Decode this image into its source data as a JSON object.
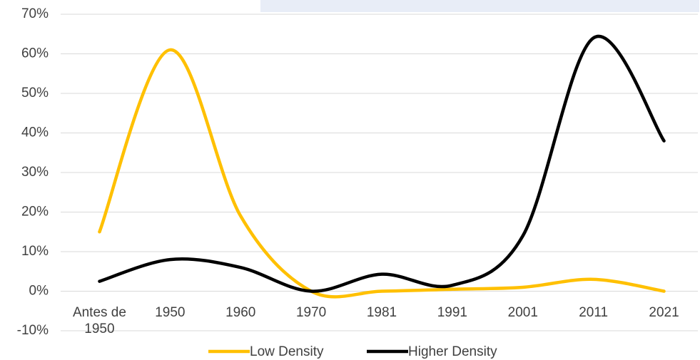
{
  "chart_data": {
    "type": "line",
    "categories": [
      "Antes de 1950",
      "1950",
      "1960",
      "1970",
      "1981",
      "1991",
      "2001",
      "2011",
      "2021"
    ],
    "series": [
      {
        "name": "Low Density",
        "color": "#FFC000",
        "values": [
          15,
          61,
          19,
          0,
          0,
          0.5,
          1,
          3,
          0
        ]
      },
      {
        "name": "Higher Density",
        "color": "#000000",
        "values": [
          2.5,
          8,
          6,
          0,
          4.3,
          1.5,
          14,
          64,
          38
        ]
      }
    ],
    "ylim": [
      -10,
      70
    ],
    "yticks": [
      {
        "value": -10,
        "label": "-10%"
      },
      {
        "value": 0,
        "label": "0%"
      },
      {
        "value": 10,
        "label": "10%"
      },
      {
        "value": 20,
        "label": "20%"
      },
      {
        "value": 30,
        "label": "30%"
      },
      {
        "value": 40,
        "label": "40%"
      },
      {
        "value": 50,
        "label": "50%"
      },
      {
        "value": 60,
        "label": "60%"
      },
      {
        "value": 70,
        "label": "70%"
      }
    ],
    "grid": true,
    "smooth": true,
    "legend": "bottom"
  }
}
